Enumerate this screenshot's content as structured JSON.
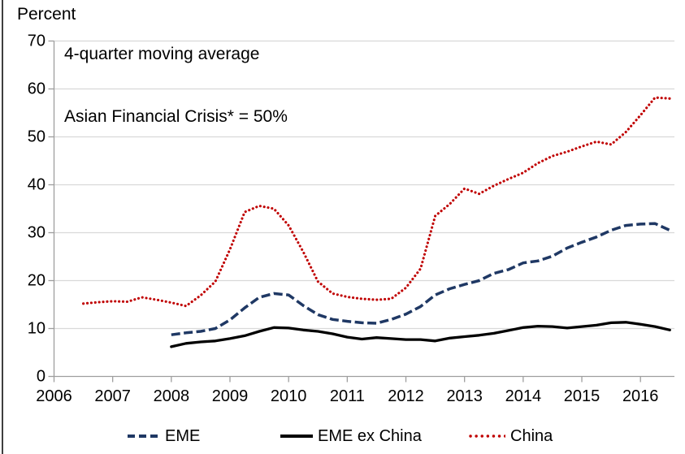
{
  "header": {
    "y_axis_unit": "Percent"
  },
  "annotations": {
    "line1": "4-quarter moving average",
    "line2": "Asian Financial Crisis* = 50%"
  },
  "legend": {
    "items": [
      {
        "label": "EME",
        "style": "dashed",
        "color": "#1F3864"
      },
      {
        "label": "EME ex China",
        "style": "solid",
        "color": "#000000"
      },
      {
        "label": "China",
        "style": "dotted",
        "color": "#C00000"
      }
    ]
  },
  "colors": {
    "eme": "#1F3864",
    "eme_ex_china": "#000000",
    "china": "#C00000",
    "gridline": "#D9D9D9",
    "axis": "#9E9E9E",
    "text": "#000000",
    "left_border": "#3F3F3F"
  },
  "chart_data": {
    "type": "line",
    "title": "",
    "ylabel": "Percent",
    "xlabel": "",
    "ylim": [
      0,
      70
    ],
    "xlim": [
      2006,
      2016.6
    ],
    "y_ticks": [
      0,
      10,
      20,
      30,
      40,
      50,
      60,
      70
    ],
    "x_ticks": [
      2006,
      2007,
      2008,
      2009,
      2010,
      2011,
      2012,
      2013,
      2014,
      2015,
      2016
    ],
    "grid": "horizontal",
    "legend_position": "bottom",
    "note": "4-quarter moving average; Asian Financial Crisis* = 50%",
    "series": [
      {
        "name": "EME",
        "line_style": "dashed",
        "color": "#1F3864",
        "x_start": 2008.0,
        "x_step": 0.25,
        "values": [
          8.7,
          9.1,
          9.4,
          10.0,
          11.8,
          14.3,
          16.5,
          17.3,
          17.0,
          14.8,
          12.9,
          11.9,
          11.5,
          11.2,
          11.1,
          11.9,
          13.0,
          14.6,
          17.0,
          18.3,
          19.2,
          20.0,
          21.5,
          22.3,
          23.7,
          24.1,
          25.1,
          26.8,
          28.0,
          29.1,
          30.5,
          31.5,
          31.8,
          31.9,
          30.5
        ]
      },
      {
        "name": "EME ex China",
        "line_style": "solid",
        "color": "#000000",
        "x_start": 2008.0,
        "x_step": 0.25,
        "values": [
          6.2,
          6.9,
          7.2,
          7.4,
          7.9,
          8.5,
          9.4,
          10.2,
          10.1,
          9.7,
          9.4,
          8.9,
          8.2,
          7.8,
          8.1,
          7.9,
          7.7,
          7.7,
          7.4,
          8.0,
          8.3,
          8.6,
          9.0,
          9.6,
          10.2,
          10.5,
          10.4,
          10.1,
          10.4,
          10.7,
          11.2,
          11.3,
          10.9,
          10.4,
          9.7
        ]
      },
      {
        "name": "China",
        "line_style": "dotted",
        "color": "#C00000",
        "x_start": 2006.5,
        "x_step": 0.25,
        "values": [
          15.2,
          15.5,
          15.7,
          15.6,
          16.5,
          16.0,
          15.4,
          14.7,
          16.9,
          19.8,
          26.5,
          34.3,
          35.6,
          35.0,
          31.5,
          26.0,
          19.8,
          17.3,
          16.6,
          16.2,
          16.0,
          16.2,
          18.5,
          22.5,
          33.5,
          36.0,
          39.2,
          38.1,
          39.8,
          41.2,
          42.5,
          44.5,
          46.0,
          46.9,
          48.0,
          49.0,
          48.4,
          51.0,
          54.5,
          58.2,
          58.0
        ]
      }
    ]
  }
}
